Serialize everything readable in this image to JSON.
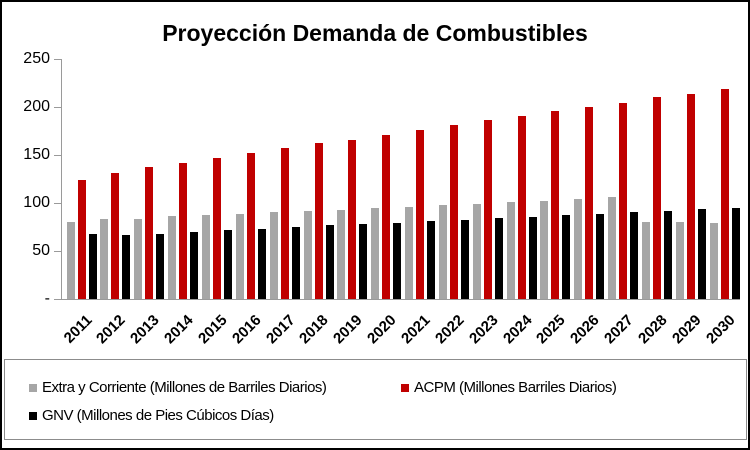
{
  "chart_data": {
    "type": "bar",
    "title": "Proyección Demanda de Combustibles",
    "categories": [
      "2011",
      "2012",
      "2013",
      "2014",
      "2015",
      "2016",
      "2017",
      "2018",
      "2019",
      "2020",
      "2021",
      "2022",
      "2023",
      "2024",
      "2025",
      "2026",
      "2027",
      "2028",
      "2029",
      "2030"
    ],
    "series": [
      {
        "name": "Extra y Corriente (Millones de Barriles Diarios)",
        "color": "#A6A6A6",
        "values": [
          80,
          83,
          83,
          86,
          87,
          89,
          91,
          92,
          93,
          95,
          96,
          98,
          99,
          101,
          102,
          104,
          106,
          80,
          80,
          79
        ]
      },
      {
        "name": "ACPM (Millones Barriles Diarios)",
        "color": "#C00000",
        "values": [
          124,
          131,
          137,
          142,
          147,
          152,
          157,
          162,
          166,
          171,
          176,
          181,
          186,
          191,
          196,
          200,
          204,
          210,
          214,
          219
        ]
      },
      {
        "name": "GNV (Millones de Pies Cúbicos Días)",
        "color": "#000000",
        "values": [
          68,
          67,
          68,
          70,
          72,
          73,
          75,
          77,
          78,
          79,
          81,
          82,
          84,
          85,
          87,
          89,
          91,
          92,
          94,
          95
        ]
      }
    ],
    "ylim": [
      0,
      250
    ],
    "y_ticks": [
      {
        "value": 250,
        "label": "250"
      },
      {
        "value": 200,
        "label": "200"
      },
      {
        "value": 150,
        "label": "150"
      },
      {
        "value": 100,
        "label": "100"
      },
      {
        "value": 50,
        "label": "50"
      },
      {
        "value": 0,
        "label": "-"
      }
    ],
    "xlabel": "",
    "ylabel": "",
    "grid": false,
    "legend_position": "bottom",
    "x_label_rotation_deg": 45
  }
}
